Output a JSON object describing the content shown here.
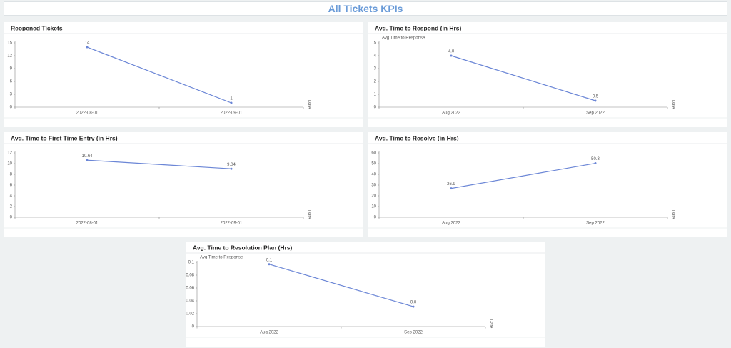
{
  "header": {
    "title": "All Tickets KPIs"
  },
  "chart_data": [
    {
      "type": "line",
      "title": "Reopened Tickets",
      "x_label": "Date",
      "color": "#6b86d6",
      "categories": [
        "2022-08-01",
        "2022-09-01"
      ],
      "values": [
        14,
        1
      ],
      "ylim": [
        0,
        15
      ],
      "yticks": [
        0,
        3,
        6,
        9,
        12,
        15
      ]
    },
    {
      "type": "line",
      "title": "Avg. Time to Respond (in Hrs)",
      "subtitle": "Avg Time to Response",
      "x_label": "Date",
      "color": "#6b86d6",
      "categories": [
        "Aug 2022",
        "Sep 2022"
      ],
      "values": [
        4.0,
        0.5
      ],
      "value_labels": [
        "4.0",
        "0.5"
      ],
      "ylim": [
        0,
        5
      ],
      "yticks": [
        0,
        1,
        2,
        3,
        4,
        5
      ]
    },
    {
      "type": "line",
      "title": "Avg. Time to First Time Entry (in Hrs)",
      "x_label": "Date",
      "color": "#6b86d6",
      "categories": [
        "2022-08-01",
        "2022-09-01"
      ],
      "values": [
        10.64,
        9.04
      ],
      "ylim": [
        0,
        12
      ],
      "yticks": [
        0,
        2,
        4,
        6,
        8,
        10,
        12
      ]
    },
    {
      "type": "line",
      "title": "Avg. Time to Resolve (in Hrs)",
      "x_label": "Date",
      "color": "#6b86d6",
      "categories": [
        "Aug 2022",
        "Sep 2022"
      ],
      "values": [
        26.9,
        50.3
      ],
      "ylim": [
        0,
        60
      ],
      "yticks": [
        0,
        10,
        20,
        30,
        40,
        50,
        60
      ]
    },
    {
      "type": "line",
      "title": "Avg. Time to Resolution Plan (Hrs)",
      "subtitle": "Avg Time to Response",
      "x_label": "Date",
      "color": "#6b86d6",
      "categories": [
        "Aug 2022",
        "Sep 2022"
      ],
      "values": [
        0.097,
        0.031
      ],
      "value_labels": [
        "0.1",
        "0.0"
      ],
      "ylim": [
        0,
        0.1
      ],
      "yticks": [
        0,
        0.02,
        0.04,
        0.06,
        0.08,
        0.1
      ]
    }
  ]
}
